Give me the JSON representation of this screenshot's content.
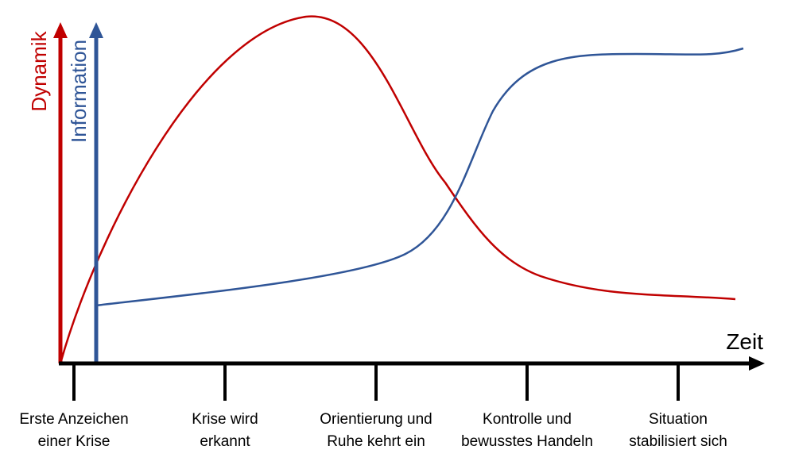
{
  "axes": {
    "dynamics": "Dynamik",
    "information": "Information",
    "time": "Zeit"
  },
  "phases": [
    {
      "lines": [
        "Erste Anzeichen",
        "einer Krise"
      ]
    },
    {
      "lines": [
        "Krise wird",
        "erkannt"
      ]
    },
    {
      "lines": [
        "Orientierung und",
        "Ruhe kehrt ein"
      ]
    },
    {
      "lines": [
        "Kontrolle und",
        "bewusstes Handeln"
      ]
    },
    {
      "lines": [
        "Situation",
        "stabilisiert sich"
      ]
    }
  ]
}
